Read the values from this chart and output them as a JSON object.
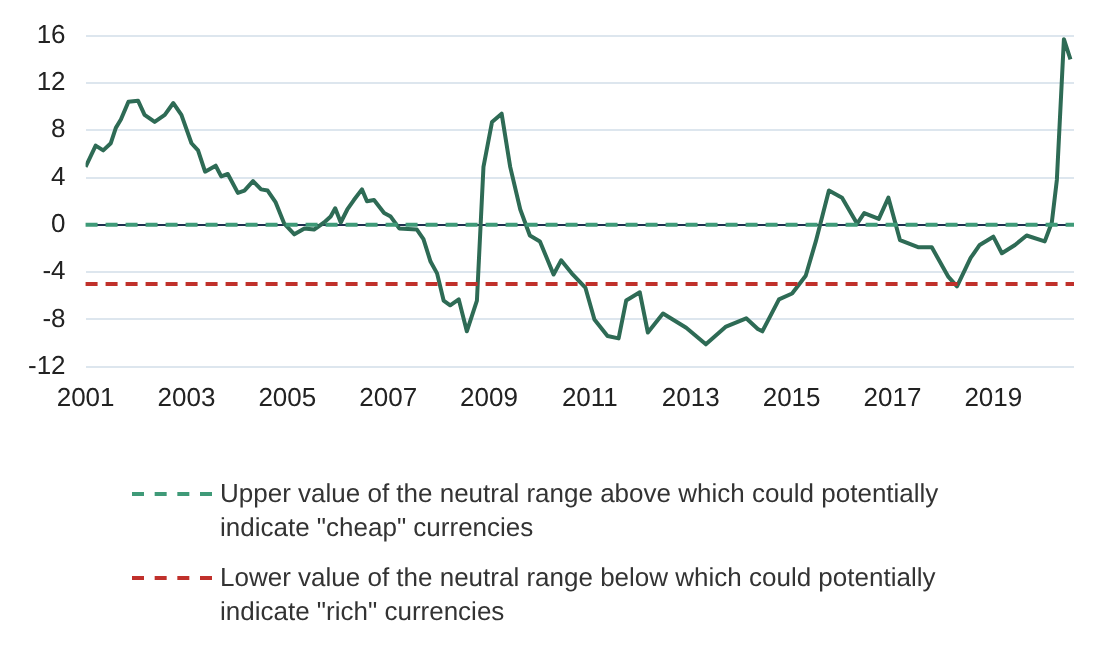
{
  "chart_data": {
    "type": "line",
    "x": [
      2001.0,
      2001.2,
      2001.35,
      2001.5,
      2001.6,
      2001.7,
      2001.85,
      2002.04,
      2002.17,
      2002.37,
      2002.57,
      2002.74,
      2002.9,
      2003.1,
      2003.23,
      2003.37,
      2003.58,
      2003.69,
      2003.82,
      2004.02,
      2004.15,
      2004.32,
      2004.48,
      2004.61,
      2004.77,
      2004.94,
      2005.14,
      2005.34,
      2005.53,
      2005.73,
      2005.86,
      2005.95,
      2006.06,
      2006.19,
      2006.32,
      2006.48,
      2006.58,
      2006.72,
      2006.92,
      2007.05,
      2007.22,
      2007.57,
      2007.7,
      2007.84,
      2007.97,
      2008.1,
      2008.23,
      2008.4,
      2008.56,
      2008.76,
      2008.89,
      2009.06,
      2009.25,
      2009.42,
      2009.62,
      2009.81,
      2010.01,
      2010.28,
      2010.43,
      2010.64,
      2010.91,
      2011.09,
      2011.35,
      2011.57,
      2011.72,
      2011.99,
      2012.15,
      2012.45,
      2012.91,
      2013.3,
      2013.7,
      2014.1,
      2014.33,
      2014.42,
      2014.75,
      2015.01,
      2015.28,
      2015.48,
      2015.74,
      2016.0,
      2016.3,
      2016.44,
      2016.73,
      2016.92,
      2017.15,
      2017.52,
      2017.78,
      2018.11,
      2018.28,
      2018.55,
      2018.73,
      2019.0,
      2019.17,
      2019.43,
      2019.66,
      2020.02,
      2020.16,
      2020.26,
      2020.4,
      2020.53
    ],
    "series": [
      {
        "color": "#2e6b55",
        "values": [
          4.9,
          6.7,
          6.3,
          6.9,
          8.2,
          8.9,
          10.4,
          10.5,
          9.3,
          8.7,
          9.3,
          10.3,
          9.3,
          6.9,
          6.3,
          4.5,
          5.0,
          4.1,
          4.3,
          2.7,
          2.9,
          3.7,
          3.0,
          2.9,
          1.9,
          0.1,
          -0.8,
          -0.3,
          -0.4,
          0.2,
          0.7,
          1.4,
          0.2,
          1.3,
          2.1,
          3.0,
          2.0,
          2.1,
          1.0,
          0.7,
          -0.3,
          -0.4,
          -1.2,
          -3.1,
          -4.1,
          -6.4,
          -6.8,
          -6.3,
          -9.0,
          -6.4,
          4.9,
          8.7,
          9.4,
          4.9,
          1.3,
          -0.9,
          -1.4,
          -4.2,
          -3.0,
          -4.1,
          -5.3,
          -8.0,
          -9.4,
          -9.6,
          -6.4,
          -5.7,
          -9.1,
          -7.5,
          -8.7,
          -10.1,
          -8.6,
          -7.9,
          -8.8,
          -9.0,
          -6.3,
          -5.8,
          -4.3,
          -1.4,
          2.9,
          2.3,
          0.1,
          1.0,
          0.5,
          2.3,
          -1.3,
          -1.9,
          -1.9,
          -4.4,
          -5.2,
          -2.8,
          -1.7,
          -1.0,
          -2.4,
          -1.7,
          -0.9,
          -1.4,
          0.2,
          3.8,
          15.7,
          14.0
        ]
      }
    ],
    "xlim": [
      2001,
      2020.6
    ],
    "xticks": [
      2001,
      2003,
      2005,
      2007,
      2009,
      2011,
      2013,
      2015,
      2017,
      2019
    ],
    "ylim": [
      -12,
      16
    ],
    "yticks": [
      -12,
      -8,
      -4,
      0,
      4,
      8,
      12,
      16
    ],
    "grid": "y",
    "marker": "none",
    "line_style": "solid",
    "legend": "bottom",
    "ref_lines": [
      {
        "axis": "y",
        "value": 0,
        "label": "Upper value of the neutral range above which could potentially indicate \"cheap\" currencies",
        "color": "#3f9a78",
        "line_style": "dashed"
      },
      {
        "axis": "y",
        "value": -5,
        "label": "Lower value of the neutral range below which could potentially indicate \"rich\" currencies",
        "color": "#c0302b",
        "line_style": "dashed"
      }
    ]
  }
}
